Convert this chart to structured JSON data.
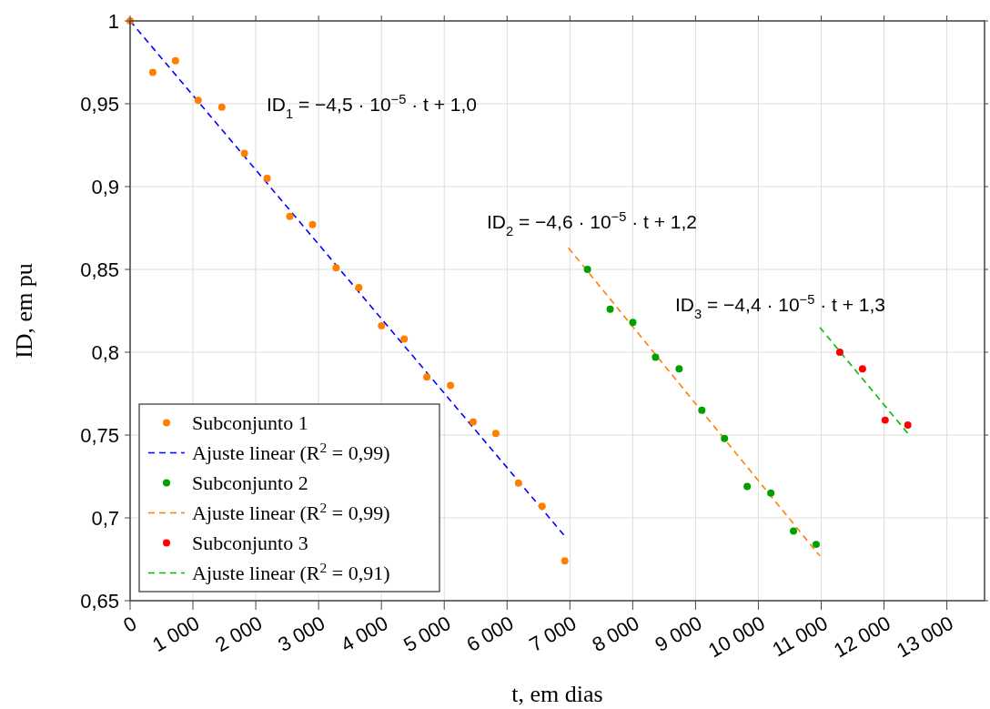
{
  "chart_data": {
    "type": "scatter",
    "xlabel": "t, em dias",
    "ylabel": "ID, em pu",
    "xlim": [
      0,
      13600
    ],
    "ylim": [
      0.65,
      1
    ],
    "xticks": [
      0,
      {
        "value": 1000,
        "label": "1 000"
      },
      {
        "value": 2000,
        "label": "2 000"
      },
      {
        "value": 3000,
        "label": "3 000"
      },
      {
        "value": 4000,
        "label": "4 000"
      },
      {
        "value": 5000,
        "label": "5 000"
      },
      {
        "value": 6000,
        "label": "6 000"
      },
      {
        "value": 7000,
        "label": "7 000"
      },
      {
        "value": 8000,
        "label": "8 000"
      },
      {
        "value": 9000,
        "label": "9 000"
      },
      {
        "value": 10000,
        "label": "10 000"
      },
      {
        "value": 11000,
        "label": "11 000"
      },
      {
        "value": 12000,
        "label": "12 000"
      },
      {
        "value": 13000,
        "label": "13 000"
      }
    ],
    "yticks": [
      {
        "value": 0.65,
        "label": "0,65"
      },
      {
        "value": 0.7,
        "label": "0,7"
      },
      {
        "value": 0.75,
        "label": "0,75"
      },
      {
        "value": 0.8,
        "label": "0,8"
      },
      {
        "value": 0.85,
        "label": "0,85"
      },
      {
        "value": 0.9,
        "label": "0,9"
      },
      {
        "value": 0.95,
        "label": "0,95"
      },
      1
    ],
    "grid": true,
    "legend": "bottom left",
    "series": [
      {
        "name": "Subconjunto 1",
        "marker": "circle",
        "color": "#ff8000",
        "x": [
          0,
          361,
          722,
          1083,
          1459,
          1820,
          2181,
          2542,
          2903,
          3279,
          3640,
          4001,
          4362,
          4723,
          5099,
          5460,
          5821,
          6182,
          6558,
          6919
        ],
        "values": [
          1.0,
          0.969,
          0.976,
          0.952,
          0.948,
          0.92,
          0.905,
          0.882,
          0.877,
          0.851,
          0.839,
          0.816,
          0.808,
          0.785,
          0.78,
          0.758,
          0.751,
          0.721,
          0.707,
          0.674
        ]
      },
      {
        "name": "Ajuste linear (R$^{2}$ = 0,99)",
        "type": "line",
        "line_style": "dashed",
        "color": "#0000ff",
        "x": [
          0,
          6919
        ],
        "values": [
          1.0,
          0.689
        ]
      },
      {
        "name": "Subconjunto 2",
        "marker": "circle",
        "color": "#00a000",
        "x": [
          7280,
          7641,
          8002,
          8363,
          8739,
          9100,
          9461,
          9822,
          10198,
          10559,
          10920
        ],
        "values": [
          0.85,
          0.826,
          0.818,
          0.797,
          0.79,
          0.765,
          0.748,
          0.719,
          0.715,
          0.692,
          0.684
        ]
      },
      {
        "name": "Ajuste linear (R$^{2}$ = 0,99)",
        "type": "line",
        "line_style": "dashed",
        "color": "#ff8000",
        "x": [
          6977,
          10978
        ],
        "values": [
          0.863,
          0.677
        ]
      },
      {
        "name": "Subconjunto 3",
        "marker": "circle",
        "color": "#ff0000",
        "x": [
          11296,
          11657,
          12018,
          12379
        ],
        "values": [
          0.8,
          0.79,
          0.759,
          0.756
        ]
      },
      {
        "name": "Ajuste linear (R$^{2}$ = 0,91)",
        "type": "line",
        "line_style": "dashed",
        "color": "#00c000",
        "x": [
          10978,
          12379
        ],
        "values": [
          0.815,
          0.751
        ]
      }
    ],
    "annotations": [
      "ID$_{1}$ = −4,5 · 10$^{−5}$ · t + 1,0",
      "ID$_{2}$ = −4,6 · 10$^{−5}$ · t + 1,2",
      "ID$_{3}$ = −4,4 · 10$^{−5}$ · t + 1,3"
    ]
  }
}
